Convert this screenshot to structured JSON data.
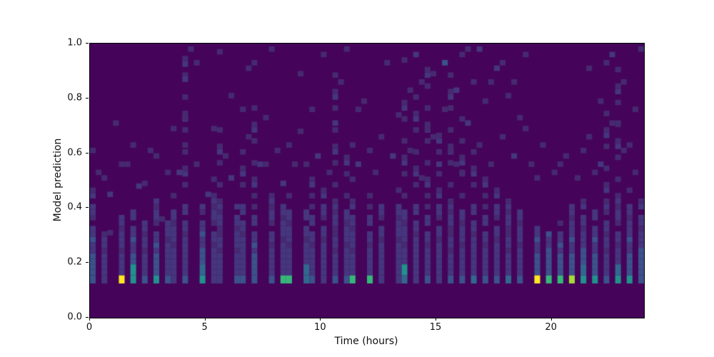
{
  "figure": {
    "background": "#ffffff",
    "plot_background": "#45045a",
    "spine_color": "#000000"
  },
  "chart_data": {
    "type": "heatmap",
    "title": "",
    "xlabel": "Time (hours)",
    "ylabel": "Model prediction",
    "xlim": [
      0,
      24
    ],
    "ylim": [
      0.0,
      1.0
    ],
    "xticks": {
      "values": [
        0,
        5,
        10,
        15,
        20
      ],
      "labels": [
        "0",
        "5",
        "10",
        "15",
        "20"
      ]
    },
    "yticks": {
      "values": [
        0.0,
        0.2,
        0.4,
        0.6,
        0.8,
        1.0
      ],
      "labels": [
        "0.0",
        "0.2",
        "0.4",
        "0.6",
        "0.8",
        "1.0"
      ]
    },
    "grid": false,
    "legend": "none",
    "colormap": "viridis",
    "x_bins": 96,
    "y_bins": 50,
    "bin_width_hours": 0.25,
    "bin_height": 0.02,
    "palette": {
      "0": "#45045a",
      "1": "#462a70",
      "2": "#45367e",
      "3": "#3b528b",
      "4": "#31688e",
      "5": "#21918c",
      "6": "#35b779",
      "7": "#5ec962",
      "8": "#a5db36",
      "9": "#fde725"
    },
    "columns_format": "[x_bin_index, streak_top_y, base_level, bottom_cell_level, accent_level(optional)]",
    "columns": [
      [
        0,
        0.46,
        3,
        3
      ],
      [
        2,
        0.3,
        2,
        2
      ],
      [
        5,
        0.38,
        2,
        9
      ],
      [
        7,
        0.45,
        3,
        5,
        5
      ],
      [
        9,
        0.35,
        2,
        3
      ],
      [
        11,
        0.42,
        3,
        5
      ],
      [
        13,
        0.35,
        2,
        3
      ],
      [
        14,
        0.5,
        2,
        2
      ],
      [
        16,
        0.95,
        2,
        3
      ],
      [
        19,
        0.4,
        3,
        5,
        4
      ],
      [
        21,
        0.55,
        2,
        2
      ],
      [
        22,
        0.75,
        2,
        2
      ],
      [
        25,
        0.4,
        2,
        3
      ],
      [
        26,
        0.6,
        2,
        3
      ],
      [
        28,
        0.8,
        3,
        3
      ],
      [
        31,
        0.45,
        2,
        3
      ],
      [
        33,
        0.4,
        2,
        6
      ],
      [
        34,
        0.5,
        2,
        6
      ],
      [
        37,
        0.42,
        2,
        4,
        4
      ],
      [
        38,
        0.55,
        2,
        3
      ],
      [
        40,
        0.48,
        2,
        2
      ],
      [
        42,
        0.9,
        2,
        3
      ],
      [
        44,
        0.6,
        2,
        3
      ],
      [
        45,
        0.5,
        2,
        6
      ],
      [
        48,
        0.45,
        2,
        6
      ],
      [
        50,
        0.4,
        2,
        2
      ],
      [
        53,
        0.5,
        2,
        2
      ],
      [
        54,
        0.8,
        2,
        4,
        5
      ],
      [
        56,
        0.85,
        2,
        2
      ],
      [
        58,
        0.95,
        2,
        3
      ],
      [
        60,
        0.7,
        2,
        2
      ],
      [
        62,
        0.9,
        2,
        3
      ],
      [
        64,
        0.75,
        2,
        3
      ],
      [
        66,
        0.6,
        2,
        4
      ],
      [
        68,
        0.55,
        2,
        3
      ],
      [
        70,
        0.5,
        2,
        3
      ],
      [
        72,
        0.45,
        2,
        4
      ],
      [
        74,
        0.4,
        2,
        3
      ],
      [
        77,
        0.35,
        3,
        9
      ],
      [
        79,
        0.3,
        3,
        6
      ],
      [
        81,
        0.35,
        3,
        6
      ],
      [
        83,
        0.4,
        3,
        8
      ],
      [
        85,
        0.45,
        3,
        5,
        4
      ],
      [
        87,
        0.42,
        3,
        5
      ],
      [
        89,
        0.8,
        2,
        3
      ],
      [
        91,
        0.95,
        2,
        5,
        4
      ],
      [
        93,
        0.5,
        3,
        5
      ],
      [
        95,
        0.45,
        3,
        3
      ]
    ],
    "speckles_format": "[x_bin_index, y_value, level]",
    "speckles": [
      [
        1,
        0.52,
        1
      ],
      [
        3,
        0.44,
        2
      ],
      [
        3,
        0.3,
        1
      ],
      [
        6,
        0.55,
        1
      ],
      [
        8,
        0.47,
        2
      ],
      [
        10,
        0.6,
        1
      ],
      [
        12,
        0.35,
        1
      ],
      [
        15,
        0.52,
        2
      ],
      [
        16,
        0.62,
        1
      ],
      [
        16,
        0.72,
        1
      ],
      [
        16,
        0.86,
        2
      ],
      [
        17,
        0.97,
        1
      ],
      [
        18,
        0.55,
        1
      ],
      [
        20,
        0.44,
        2
      ],
      [
        21,
        0.68,
        1
      ],
      [
        23,
        0.58,
        1
      ],
      [
        24,
        0.8,
        1
      ],
      [
        24,
        0.5,
        2
      ],
      [
        27,
        0.65,
        1
      ],
      [
        27,
        0.9,
        1
      ],
      [
        29,
        0.55,
        2
      ],
      [
        30,
        0.72,
        1
      ],
      [
        31,
        0.97,
        1
      ],
      [
        32,
        0.6,
        1
      ],
      [
        33,
        0.48,
        2
      ],
      [
        35,
        0.55,
        1
      ],
      [
        36,
        0.67,
        1
      ],
      [
        36,
        0.88,
        1
      ],
      [
        38,
        0.75,
        1
      ],
      [
        39,
        0.58,
        2
      ],
      [
        40,
        0.95,
        1
      ],
      [
        41,
        0.52,
        1
      ],
      [
        42,
        0.7,
        2
      ],
      [
        43,
        0.85,
        1
      ],
      [
        44,
        0.97,
        1
      ],
      [
        45,
        0.62,
        1
      ],
      [
        46,
        0.55,
        2
      ],
      [
        47,
        0.78,
        1
      ],
      [
        49,
        0.52,
        1
      ],
      [
        50,
        0.65,
        1
      ],
      [
        51,
        0.92,
        1
      ],
      [
        52,
        0.58,
        2
      ],
      [
        53,
        0.73,
        1
      ],
      [
        55,
        0.6,
        1
      ],
      [
        55,
        0.82,
        1
      ],
      [
        56,
        0.95,
        2
      ],
      [
        57,
        0.5,
        1
      ],
      [
        58,
        0.68,
        1
      ],
      [
        59,
        0.88,
        1
      ],
      [
        60,
        0.55,
        2
      ],
      [
        61,
        0.92,
        3
      ],
      [
        61,
        0.75,
        1
      ],
      [
        62,
        0.6,
        1
      ],
      [
        63,
        0.82,
        2
      ],
      [
        64,
        0.95,
        1
      ],
      [
        64,
        0.52,
        1
      ],
      [
        65,
        0.7,
        2
      ],
      [
        66,
        0.85,
        1
      ],
      [
        67,
        0.62,
        1
      ],
      [
        67,
        0.97,
        2
      ],
      [
        68,
        0.78,
        1
      ],
      [
        69,
        0.55,
        1
      ],
      [
        70,
        0.9,
        2
      ],
      [
        71,
        0.65,
        1
      ],
      [
        72,
        0.8,
        1
      ],
      [
        73,
        0.58,
        2
      ],
      [
        74,
        0.72,
        1
      ],
      [
        75,
        0.95,
        1
      ],
      [
        76,
        0.55,
        1
      ],
      [
        78,
        0.62,
        1
      ],
      [
        80,
        0.52,
        1
      ],
      [
        82,
        0.58,
        1
      ],
      [
        84,
        0.5,
        1
      ],
      [
        86,
        0.65,
        1
      ],
      [
        86,
        0.9,
        1
      ],
      [
        88,
        0.55,
        2
      ],
      [
        88,
        0.78,
        1
      ],
      [
        90,
        0.7,
        1
      ],
      [
        90,
        0.95,
        2
      ],
      [
        92,
        0.6,
        1
      ],
      [
        92,
        0.85,
        1
      ],
      [
        94,
        0.52,
        1
      ],
      [
        94,
        0.75,
        1
      ],
      [
        95,
        0.97,
        1
      ],
      [
        0,
        0.6,
        1
      ],
      [
        2,
        0.5,
        1
      ],
      [
        4,
        0.7,
        1
      ],
      [
        5,
        0.55,
        1
      ],
      [
        7,
        0.62,
        1
      ],
      [
        9,
        0.48,
        1
      ],
      [
        11,
        0.58,
        1
      ],
      [
        13,
        0.52,
        1
      ],
      [
        14,
        0.68,
        1
      ],
      [
        18,
        0.92,
        1
      ],
      [
        22,
        0.96,
        1
      ],
      [
        26,
        0.75,
        1
      ],
      [
        28,
        0.92,
        1
      ],
      [
        30,
        0.55,
        1
      ],
      [
        34,
        0.62,
        1
      ],
      [
        37,
        0.55,
        1
      ],
      [
        46,
        0.75,
        1
      ],
      [
        48,
        0.6,
        1
      ],
      [
        54,
        0.93,
        1
      ],
      [
        57,
        0.85,
        1
      ],
      [
        59,
        0.65,
        1
      ],
      [
        63,
        0.55,
        1
      ],
      [
        65,
        0.97,
        1
      ],
      [
        69,
        0.85,
        1
      ],
      [
        71,
        0.92,
        1
      ],
      [
        73,
        0.85,
        1
      ],
      [
        75,
        0.68,
        1
      ],
      [
        77,
        0.5,
        1
      ],
      [
        81,
        0.55,
        1
      ],
      [
        85,
        0.6,
        1
      ],
      [
        87,
        0.52,
        1
      ],
      [
        89,
        0.92,
        1
      ],
      [
        91,
        0.7,
        1
      ],
      [
        93,
        0.62,
        1
      ]
    ]
  }
}
